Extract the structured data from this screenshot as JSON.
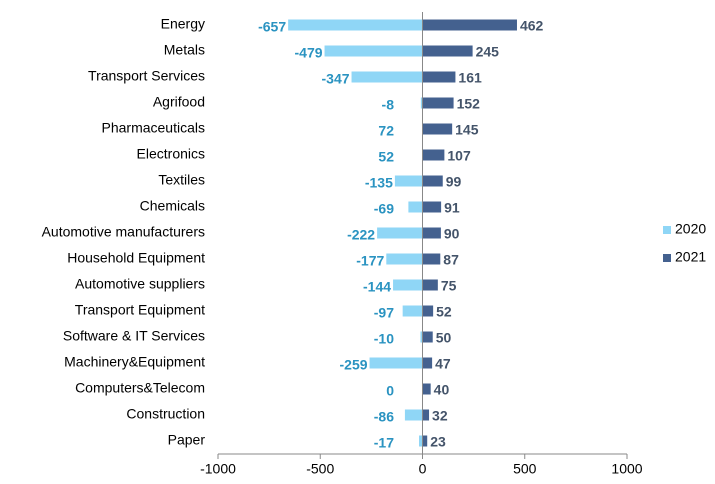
{
  "chart_data": {
    "type": "bar",
    "orientation": "horizontal",
    "categories": [
      "Energy",
      "Metals",
      "Transport Services",
      "Agrifood",
      "Pharmaceuticals",
      "Electronics",
      "Textiles",
      "Chemicals",
      "Automotive manufacturers",
      "Household Equipment",
      "Automotive suppliers",
      "Transport Equipment",
      "Software & IT Services",
      "Machinery&Equipment",
      "Computers&Telecom",
      "Construction",
      "Paper"
    ],
    "series": [
      {
        "name": "2020",
        "color": "#8fd6f6",
        "values": [
          -657,
          -479,
          -347,
          -8,
          72,
          52,
          -135,
          -69,
          -222,
          -177,
          -144,
          -97,
          -10,
          -259,
          0,
          -86,
          -17
        ]
      },
      {
        "name": "2021",
        "color": "#44618f",
        "values": [
          462,
          245,
          161,
          152,
          145,
          107,
          99,
          91,
          90,
          87,
          75,
          52,
          50,
          47,
          40,
          32,
          23
        ]
      }
    ],
    "xlim": [
      -1000,
      1000
    ],
    "xticks": [
      -1000,
      -500,
      0,
      500,
      1000
    ],
    "legend": "right"
  }
}
